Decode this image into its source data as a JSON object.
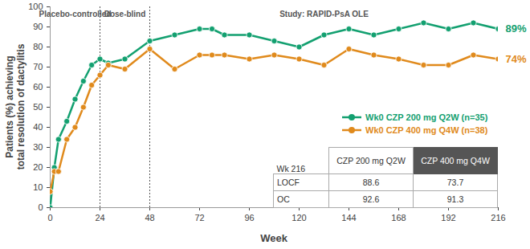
{
  "chart_data": {
    "type": "line",
    "x_label": "Week",
    "y_label": "Patients (%) achieving\ntotal resolution of dactylitis",
    "x": [
      0,
      2,
      4,
      8,
      12,
      16,
      20,
      24,
      28,
      36,
      48,
      60,
      72,
      78,
      84,
      96,
      108,
      120,
      132,
      144,
      156,
      168,
      180,
      192,
      204,
      216
    ],
    "series": [
      {
        "name": "Wk0 CZP 200 mg Q2W (n=35)",
        "color": "#13a070",
        "marker": "circle",
        "end_label": "89%",
        "values": [
          0,
          20,
          34,
          43,
          54,
          63,
          71,
          74,
          72,
          74,
          83,
          86,
          89,
          89,
          86,
          86,
          83,
          80,
          86,
          89,
          86,
          89,
          92,
          89,
          92,
          89
        ]
      },
      {
        "name": "Wk0 CZP 400 mg Q4W (n=38)",
        "color": "#e08a1c",
        "marker": "circle",
        "end_label": "74%",
        "values": [
          8,
          18,
          18,
          34,
          40,
          50,
          61,
          66,
          71,
          69,
          79,
          69,
          76,
          76,
          76,
          74,
          76,
          74,
          71,
          79,
          76,
          74,
          71,
          71,
          76,
          74
        ]
      }
    ],
    "xlim": [
      0,
      216
    ],
    "xticks": [
      0,
      24,
      48,
      72,
      96,
      120,
      144,
      168,
      192,
      216
    ],
    "ylim": [
      0,
      100
    ],
    "yticks": [
      0,
      10,
      20,
      30,
      40,
      50,
      60,
      70,
      80,
      90,
      100
    ],
    "phases": [
      {
        "label": "Placebo-controlled",
        "start": 0,
        "end": 24
      },
      {
        "label": "Dose-blind",
        "start": 24,
        "end": 48
      },
      {
        "label": "Study: RAPID-PsA OLE",
        "start": 48,
        "end": 216
      }
    ],
    "legend": "right",
    "table": {
      "header": [
        "Wk 216",
        "CZP 200 mg Q2W",
        "CZP 400 mg Q4W"
      ],
      "rows": [
        [
          "LOCF",
          88.6,
          73.7
        ],
        [
          "OC",
          92.6,
          91.3
        ]
      ]
    }
  }
}
